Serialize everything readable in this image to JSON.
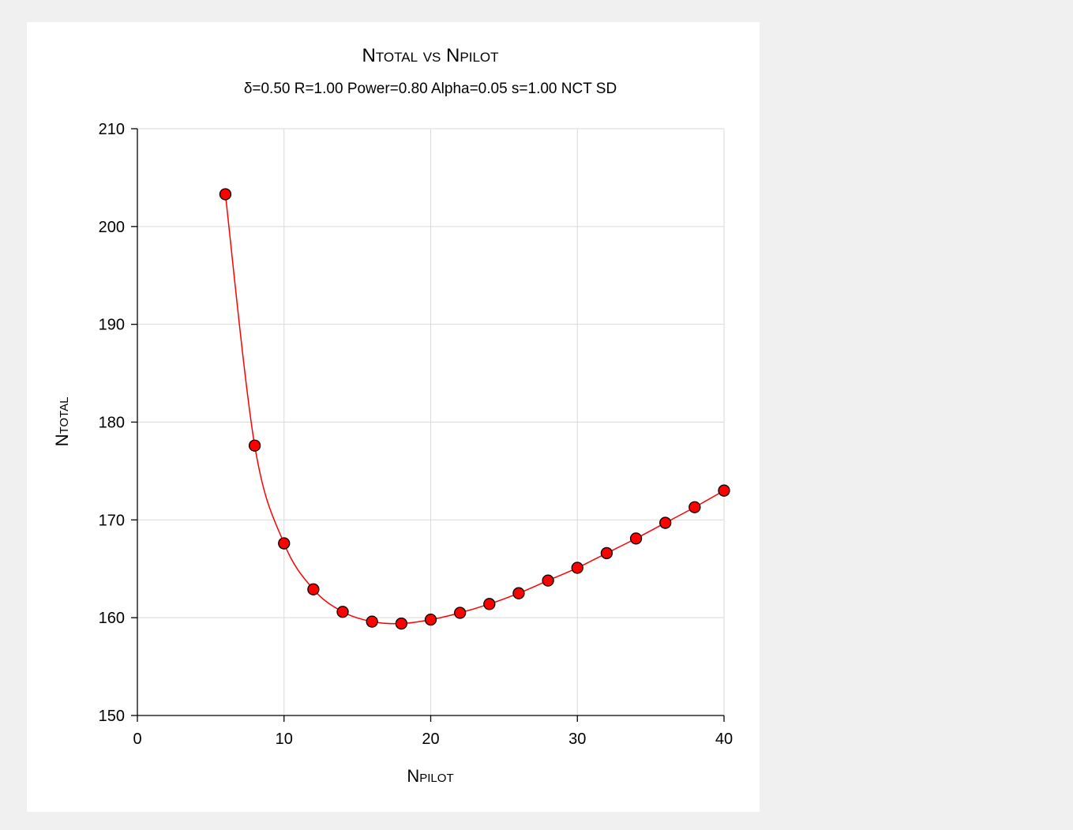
{
  "colors": {
    "background": "#f0f0f0",
    "panel": "#ffffff",
    "series_line": "#ff0000",
    "marker_fill": "#ff0000",
    "marker_stroke": "#000000",
    "grid": "#d9d9d9"
  },
  "chart_data": {
    "type": "line",
    "title": "Ntotal vs Npilot",
    "subtitle": "δ=0.50 R=1.00 Power=0.80 Alpha=0.05 s=1.00 NCT SD",
    "xlabel": "Npilot",
    "ylabel": "Ntotal",
    "xlim": [
      0,
      40
    ],
    "ylim": [
      150,
      210
    ],
    "xticks": [
      "0",
      "10",
      "20",
      "30",
      "40"
    ],
    "yticks": [
      "150",
      "160",
      "170",
      "180",
      "190",
      "200",
      "210"
    ],
    "grid": true,
    "legend": "none",
    "markers": "circle",
    "series": [
      {
        "x": [
          6,
          8,
          10,
          12,
          14,
          16,
          18,
          20,
          22,
          24,
          26,
          28,
          30,
          32,
          34,
          36,
          38,
          40
        ],
        "y": [
          203.3,
          177.6,
          167.6,
          162.9,
          160.6,
          159.6,
          159.4,
          159.8,
          160.5,
          161.4,
          162.5,
          163.8,
          165.1,
          166.6,
          168.1,
          169.7,
          171.3,
          173.0
        ]
      }
    ]
  }
}
